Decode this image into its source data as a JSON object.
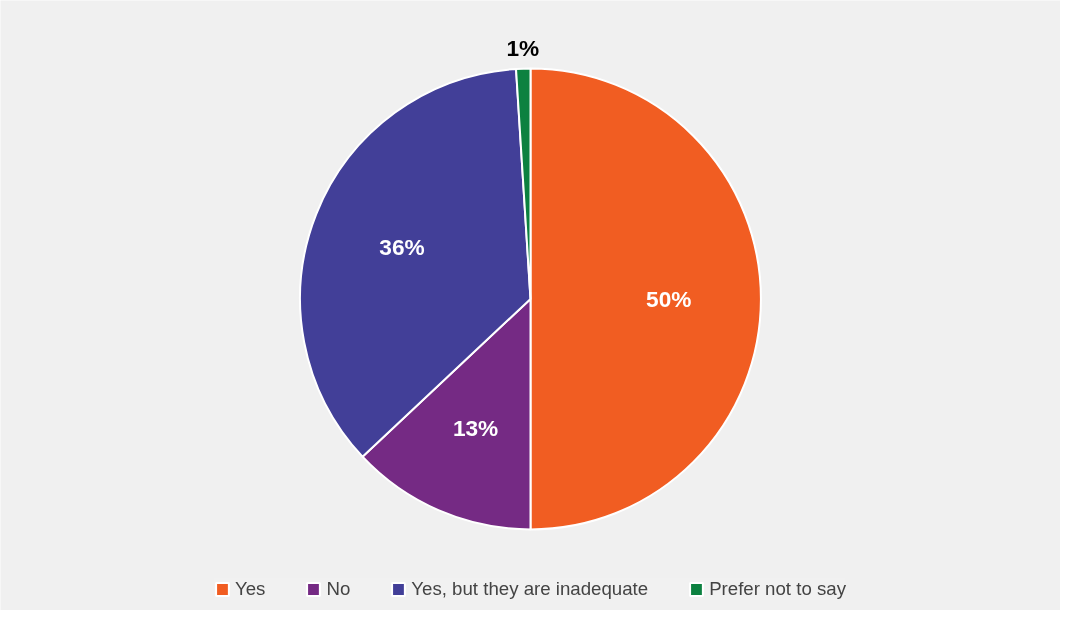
{
  "chart_data": {
    "type": "pie",
    "categories": [
      "Yes",
      "No",
      "Yes, but they are inadequate",
      "Prefer not to say"
    ],
    "values": [
      50,
      13,
      36,
      1
    ],
    "colors": [
      "#f15d22",
      "#752a84",
      "#423f98",
      "#0c8140"
    ],
    "value_labels": [
      "50%",
      "13%",
      "36%",
      "1%"
    ],
    "data_labels": true,
    "legend": "bottom"
  }
}
